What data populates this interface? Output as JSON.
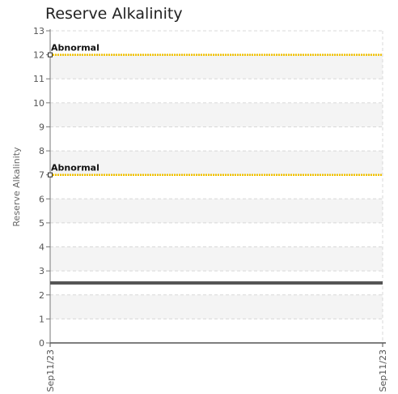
{
  "chart_data": {
    "type": "line",
    "title": "Reserve Alkalinity",
    "ylabel": "Reserve Alkalinity",
    "xlabel": "",
    "ylim": [
      0,
      13
    ],
    "y_ticks": [
      0,
      1,
      2,
      3,
      4,
      5,
      6,
      7,
      8,
      9,
      10,
      11,
      12,
      13
    ],
    "x_categories": [
      "Sep11/23",
      "Sep11/23"
    ],
    "series": [
      {
        "values": [
          2.5,
          2.5
        ],
        "color": "#555555"
      }
    ],
    "reference_lines": [
      {
        "label": "Abnormal",
        "value": 12,
        "color": "#f2c200"
      },
      {
        "label": "Abnormal",
        "value": 7,
        "color": "#f2c200"
      }
    ],
    "grid": true,
    "legend": "none"
  }
}
